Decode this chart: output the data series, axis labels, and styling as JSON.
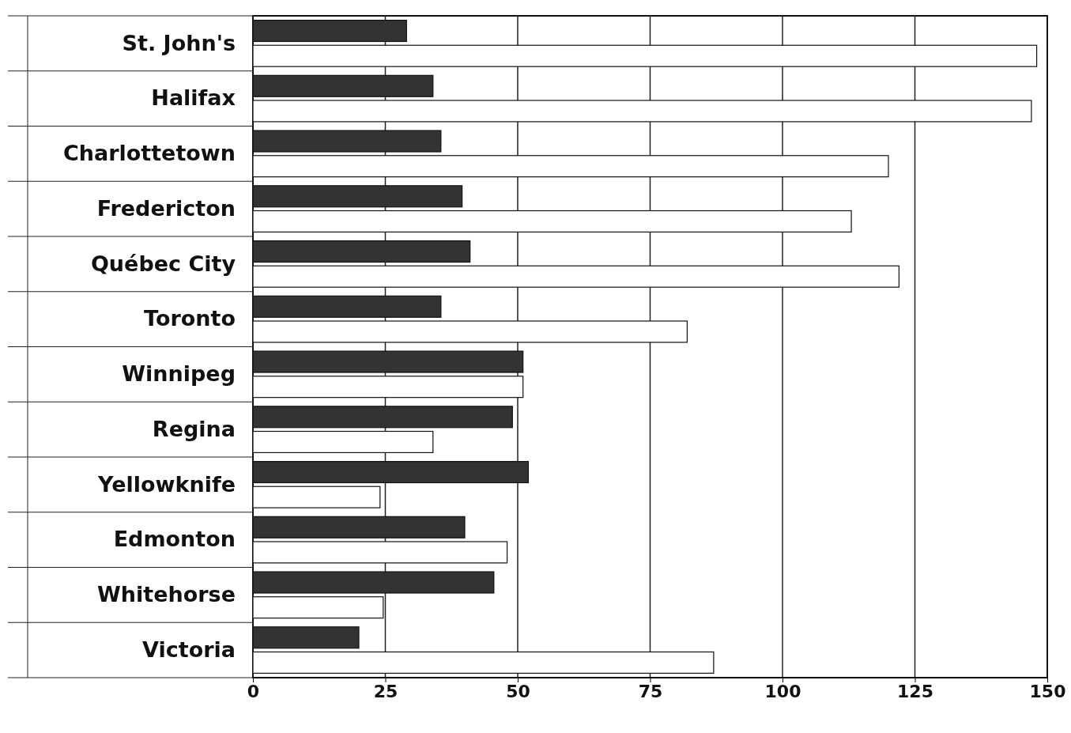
{
  "chart_data": {
    "type": "bar",
    "orientation": "horizontal",
    "categories": [
      "St. John's",
      "Halifax",
      "Charlottetown",
      "Fredericton",
      "Québec City",
      "Toronto",
      "Winnipeg",
      "Regina",
      "Yellowknife",
      "Edmonton",
      "Whitehorse",
      "Victoria"
    ],
    "series": [
      {
        "color": "#333333",
        "values": [
          29,
          34,
          35.5,
          39.5,
          41,
          35.5,
          51,
          49,
          52,
          40,
          45.5,
          20
        ]
      },
      {
        "color": "#ffffff",
        "values": [
          148,
          147,
          120,
          113,
          122,
          82,
          51,
          34,
          24,
          48,
          24.6,
          87
        ]
      }
    ],
    "xlim": [
      0,
      150
    ],
    "xticks": [
      0,
      25,
      50,
      75,
      100,
      125,
      150
    ],
    "grid": "x"
  }
}
